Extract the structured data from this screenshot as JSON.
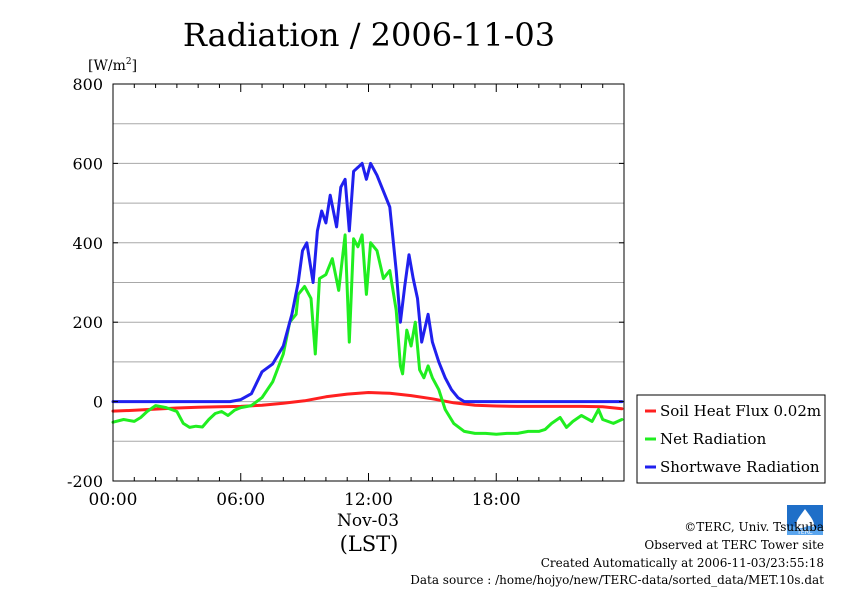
{
  "chart_data": {
    "type": "line",
    "title": "Radiation / 2006-11-03",
    "ylabel": "[W/m",
    "ylabel_sup": "2",
    "ylabel_close": "]",
    "xlabel_date": "Nov-03",
    "xlabel": "(LST)",
    "ylim": [
      -200,
      800
    ],
    "yticks": [
      -200,
      0,
      200,
      400,
      600,
      800
    ],
    "ytick_labels": [
      "-200",
      "0",
      "200",
      "400",
      "600",
      "800"
    ],
    "xlim": [
      0,
      24
    ],
    "xticks": [
      0,
      6,
      12,
      18
    ],
    "xtick_labels": [
      "00:00",
      "06:00",
      "12:00",
      "18:00"
    ],
    "grid": true,
    "legend_position": "right",
    "series": [
      {
        "name": "Soil Heat Flux 0.02m",
        "color": "#ff2020",
        "x": [
          0,
          1,
          2,
          3,
          4,
          5,
          6,
          7,
          8,
          9,
          10,
          11,
          12,
          13,
          14,
          15,
          16,
          17,
          18,
          19,
          20,
          21,
          22,
          23,
          23.9
        ],
        "y": [
          -24,
          -22,
          -19,
          -16,
          -14,
          -13,
          -12,
          -9,
          -4,
          2,
          12,
          19,
          23,
          21,
          15,
          7,
          -3,
          -9,
          -11,
          -12,
          -12,
          -12,
          -12,
          -13,
          -18
        ]
      },
      {
        "name": "Net Radiation",
        "color": "#20ee20",
        "x": [
          0,
          0.5,
          1,
          1.3,
          1.6,
          2,
          2.5,
          3,
          3.3,
          3.6,
          3.9,
          4.2,
          4.5,
          4.8,
          5.1,
          5.4,
          5.7,
          6,
          6.5,
          7,
          7.5,
          8,
          8.3,
          8.6,
          8.7,
          9,
          9.3,
          9.5,
          9.7,
          10,
          10.3,
          10.6,
          10.9,
          11.1,
          11.3,
          11.5,
          11.7,
          11.9,
          12.1,
          12.4,
          12.7,
          13,
          13.3,
          13.5,
          13.6,
          13.8,
          14,
          14.2,
          14.4,
          14.6,
          14.8,
          15,
          15.3,
          15.6,
          16,
          16.5,
          17,
          17.5,
          18,
          18.5,
          19,
          19.5,
          20,
          20.3,
          20.6,
          21,
          21.3,
          21.6,
          22,
          22.5,
          22.8,
          23,
          23.5,
          23.9
        ],
        "y": [
          -52,
          -45,
          -50,
          -40,
          -25,
          -10,
          -15,
          -25,
          -55,
          -65,
          -62,
          -64,
          -45,
          -30,
          -25,
          -35,
          -22,
          -15,
          -10,
          10,
          50,
          120,
          200,
          220,
          270,
          290,
          260,
          120,
          310,
          320,
          360,
          280,
          420,
          150,
          410,
          390,
          420,
          270,
          400,
          380,
          310,
          330,
          230,
          90,
          70,
          180,
          140,
          200,
          80,
          60,
          90,
          60,
          30,
          -20,
          -55,
          -75,
          -80,
          -80,
          -82,
          -80,
          -80,
          -75,
          -75,
          -70,
          -55,
          -40,
          -65,
          -50,
          -35,
          -50,
          -20,
          -45,
          -55,
          -45
        ]
      },
      {
        "name": "Shortwave Radiation",
        "color": "#2020ee",
        "x": [
          0,
          1,
          2,
          3,
          4,
          5,
          5.5,
          6,
          6.5,
          7,
          7.5,
          8,
          8.4,
          8.7,
          8.9,
          9.1,
          9.4,
          9.6,
          9.8,
          10,
          10.2,
          10.5,
          10.7,
          10.9,
          11.1,
          11.3,
          11.5,
          11.7,
          11.9,
          12.1,
          12.4,
          12.7,
          13,
          13.3,
          13.5,
          13.7,
          13.9,
          14.1,
          14.3,
          14.5,
          14.8,
          15,
          15.3,
          15.6,
          15.9,
          16.2,
          16.5,
          17,
          18,
          19,
          20,
          21,
          22,
          23,
          23.9
        ],
        "y": [
          0,
          0,
          0,
          0,
          0,
          0,
          0,
          5,
          20,
          75,
          95,
          140,
          220,
          300,
          380,
          400,
          300,
          430,
          480,
          450,
          520,
          440,
          540,
          560,
          430,
          580,
          590,
          600,
          560,
          600,
          570,
          530,
          490,
          330,
          200,
          290,
          370,
          310,
          260,
          150,
          220,
          150,
          100,
          60,
          30,
          10,
          0,
          0,
          0,
          0,
          0,
          0,
          0,
          0,
          0
        ]
      }
    ]
  },
  "credits": {
    "copyright": "©TERC, Univ. Tsukuba",
    "observed": "Observed at TERC Tower site",
    "created": "Created Automatically at 2006-11-03/23:55:18",
    "source": "Data source : /home/hojyo/new/TERC-data/sorted_data/MET.10s.dat",
    "logo_text": "TERC"
  }
}
